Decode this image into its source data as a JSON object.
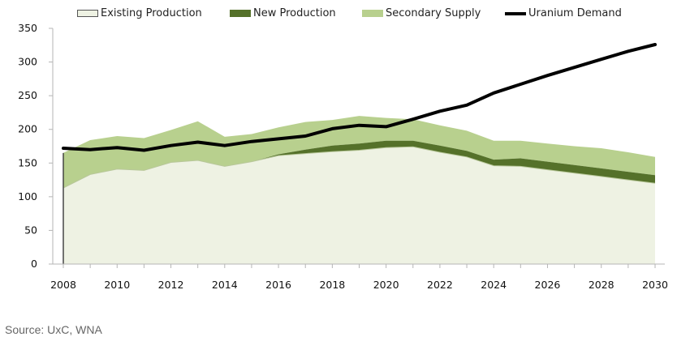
{
  "chart_data": {
    "type": "area",
    "x": [
      2008,
      2009,
      2010,
      2011,
      2012,
      2013,
      2014,
      2015,
      2016,
      2017,
      2018,
      2019,
      2020,
      2021,
      2022,
      2023,
      2024,
      2025,
      2026,
      2027,
      2028,
      2029,
      2030
    ],
    "series": [
      {
        "name": "Existing Production",
        "kind": "area",
        "values": [
          113,
          133,
          141,
          139,
          151,
          154,
          145,
          152,
          161,
          164,
          167,
          169,
          173,
          174,
          166,
          159,
          146,
          145,
          140,
          135,
          130,
          125,
          120
        ]
      },
      {
        "name": "New Production",
        "kind": "area",
        "values": [
          0,
          0,
          0,
          0,
          0,
          0,
          0,
          0,
          2,
          6,
          9,
          10,
          10,
          9,
          10,
          9,
          9,
          12,
          12,
          12,
          12,
          12,
          12
        ]
      },
      {
        "name": "Secondary Supply",
        "kind": "area",
        "values": [
          52,
          51,
          49,
          48,
          48,
          58,
          44,
          41,
          40,
          41,
          38,
          41,
          34,
          32,
          30,
          30,
          28,
          26,
          27,
          28,
          30,
          29,
          27
        ]
      },
      {
        "name": "Uranium Demand",
        "kind": "line",
        "values": [
          172,
          170,
          173,
          169,
          176,
          181,
          176,
          182,
          186,
          190,
          201,
          206,
          204,
          215,
          227,
          236,
          254,
          267,
          280,
          292,
          304,
          316,
          326
        ]
      }
    ],
    "xticks": [
      2008,
      2010,
      2012,
      2014,
      2016,
      2018,
      2020,
      2022,
      2024,
      2026,
      2028,
      2030
    ],
    "yticks": [
      0,
      50,
      100,
      150,
      200,
      250,
      300,
      350
    ],
    "xlim": [
      2008,
      2030
    ],
    "ylim": [
      0,
      350
    ],
    "grid": false,
    "legend_position": "top",
    "colors": {
      "existing": "#eef2e3",
      "existing_edge": "#b8c79a",
      "new": "#55712a",
      "secondary": "#b8d08e",
      "demand": "#000000",
      "axis": "#b5b5b5"
    },
    "source": "Source: UxC, WNA"
  }
}
